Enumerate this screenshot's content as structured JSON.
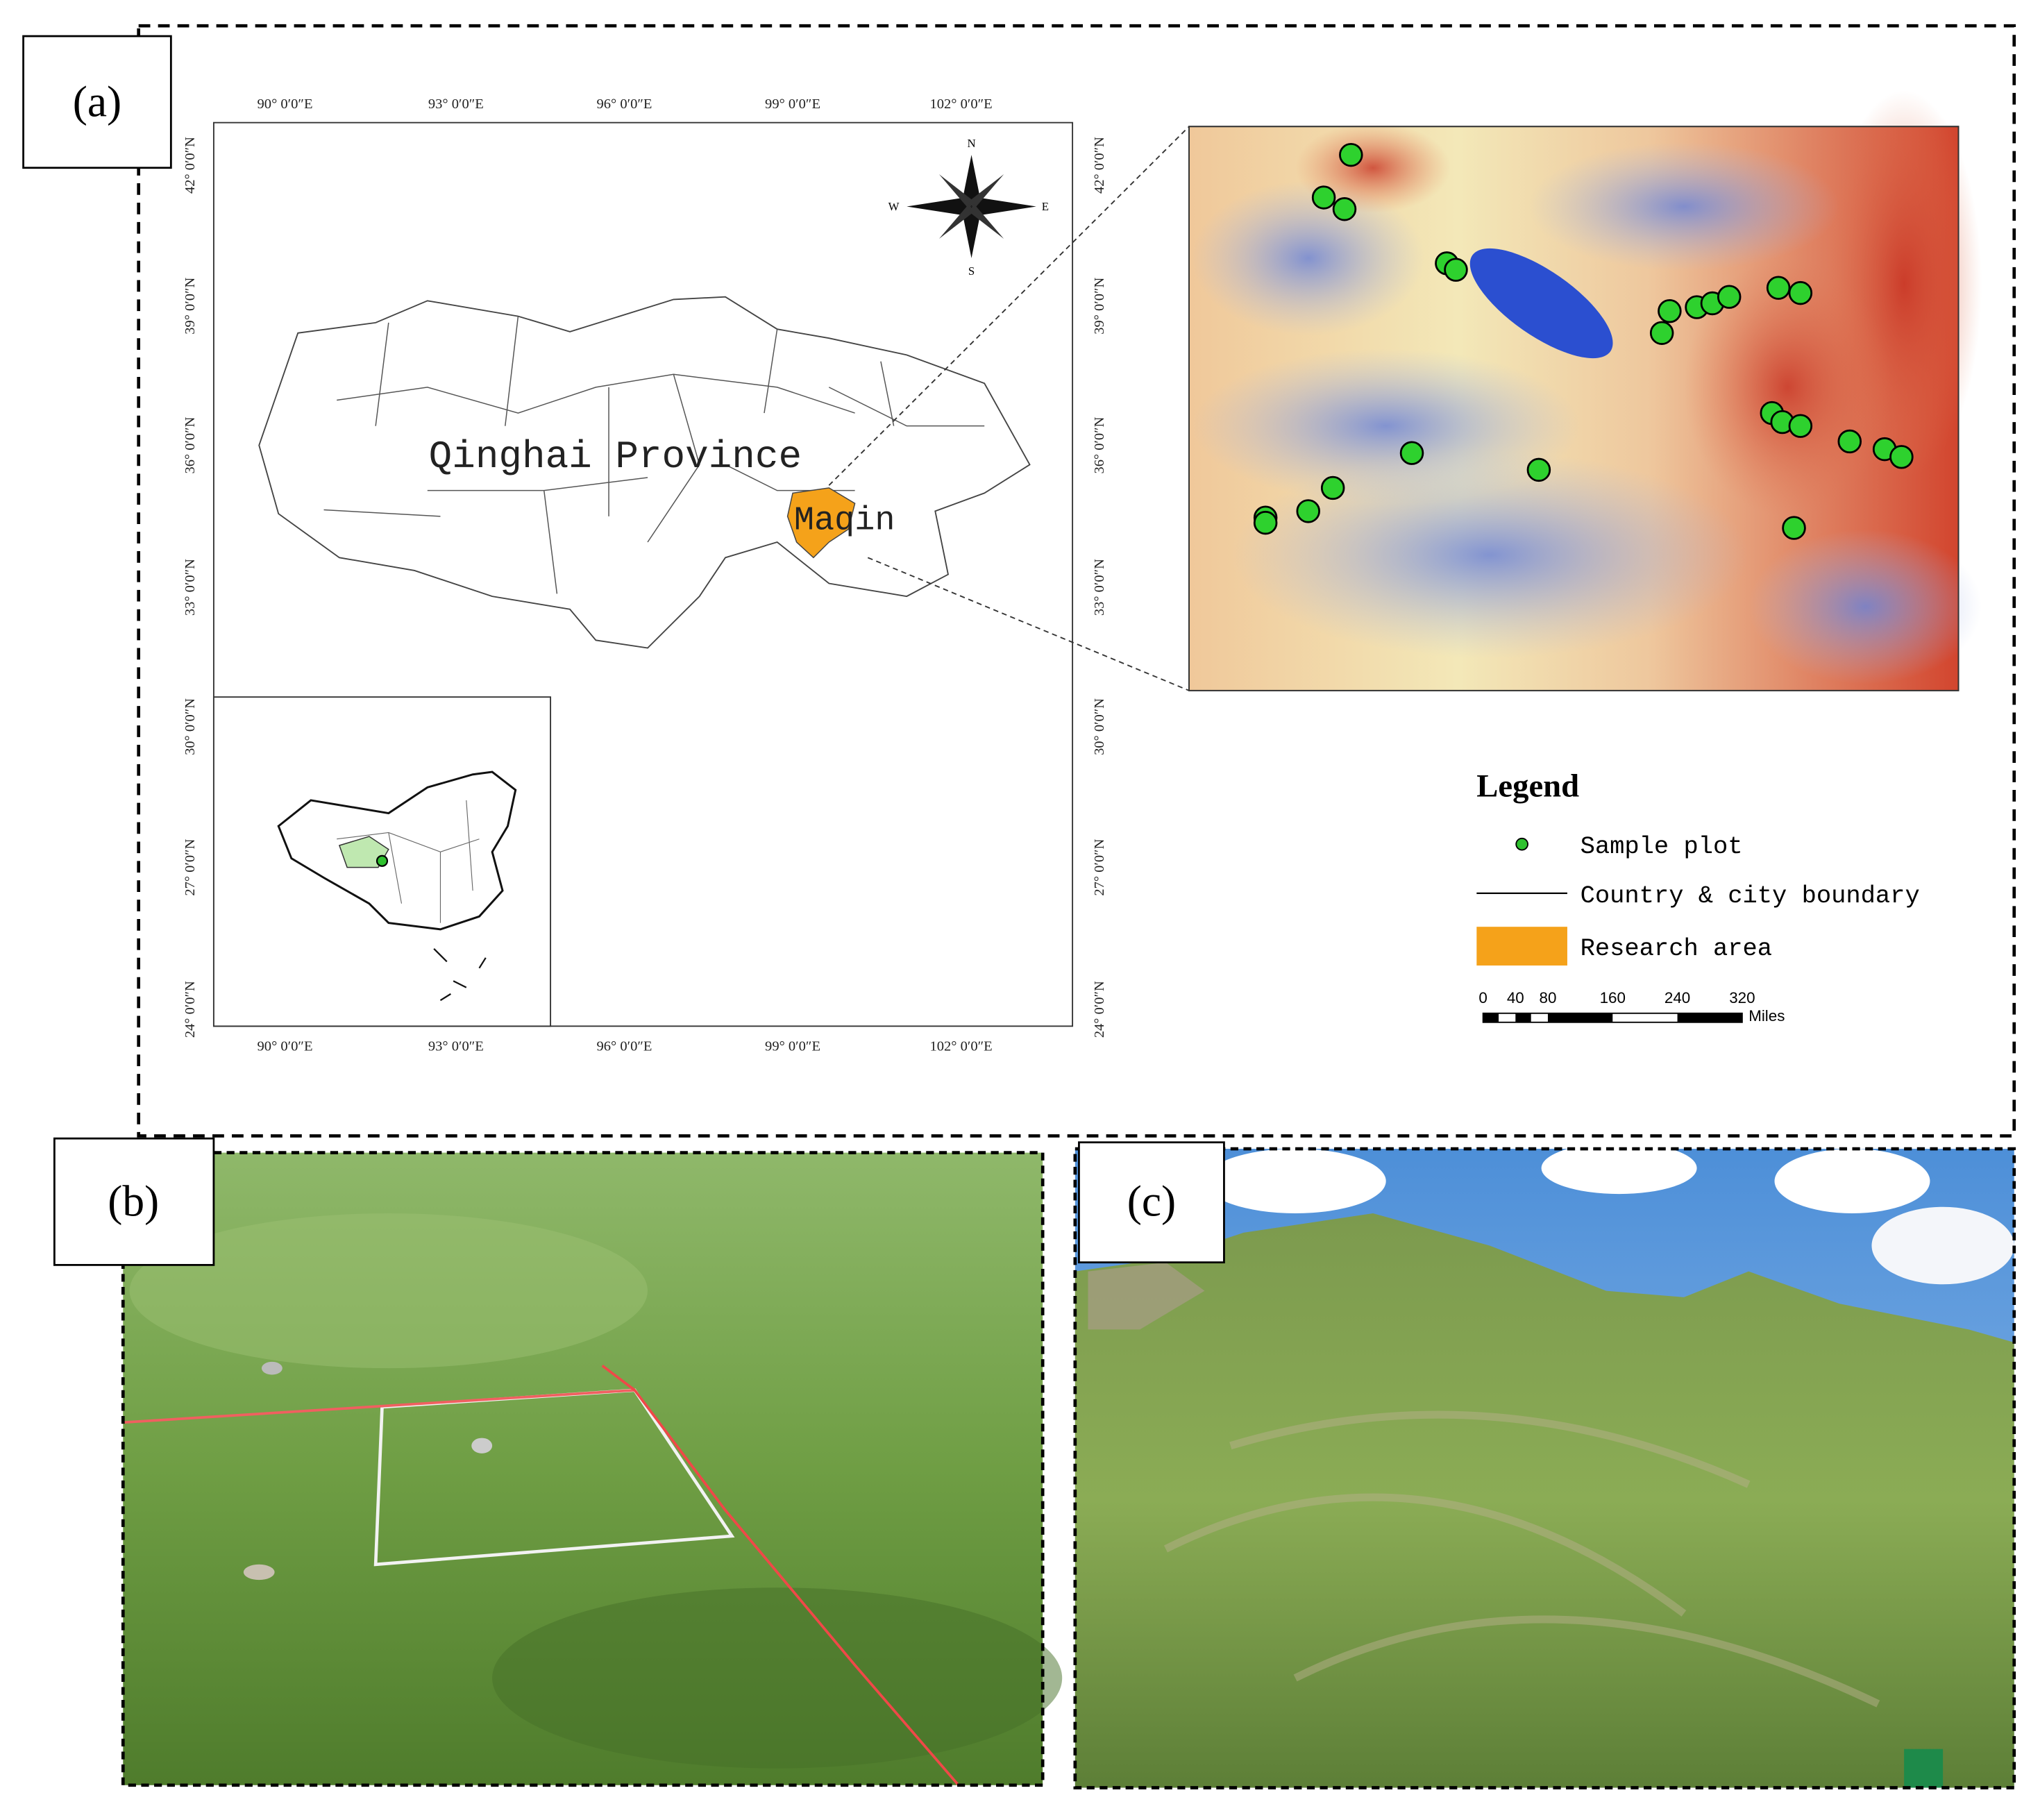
{
  "panels": {
    "a": {
      "label": "(a)",
      "lon_labels": [
        "90° 0′0″E",
        "93° 0′0″E",
        "96° 0′0″E",
        "99° 0′0″E",
        "102° 0′0″E"
      ],
      "lat_labels": [
        "42° 0′0″N",
        "39° 0′0″N",
        "36° 0′0″N",
        "33° 0′0″N",
        "30° 0′0″N",
        "27° 0′0″N",
        "24° 0′0″N"
      ],
      "region_label": "Qinghai Province",
      "area_label": "Maqin",
      "compass": {
        "n": "N",
        "s": "S",
        "w": "W",
        "e": "E"
      },
      "legend": {
        "title": "Legend",
        "items": [
          "Sample plot",
          "Country & city boundary",
          "Research area"
        ]
      },
      "scale_bar": {
        "ticks": [
          0,
          40,
          80,
          160,
          240,
          320
        ],
        "unit": "Miles"
      }
    },
    "b": {
      "label": "(b)"
    },
    "c": {
      "label": "(c)"
    }
  }
}
